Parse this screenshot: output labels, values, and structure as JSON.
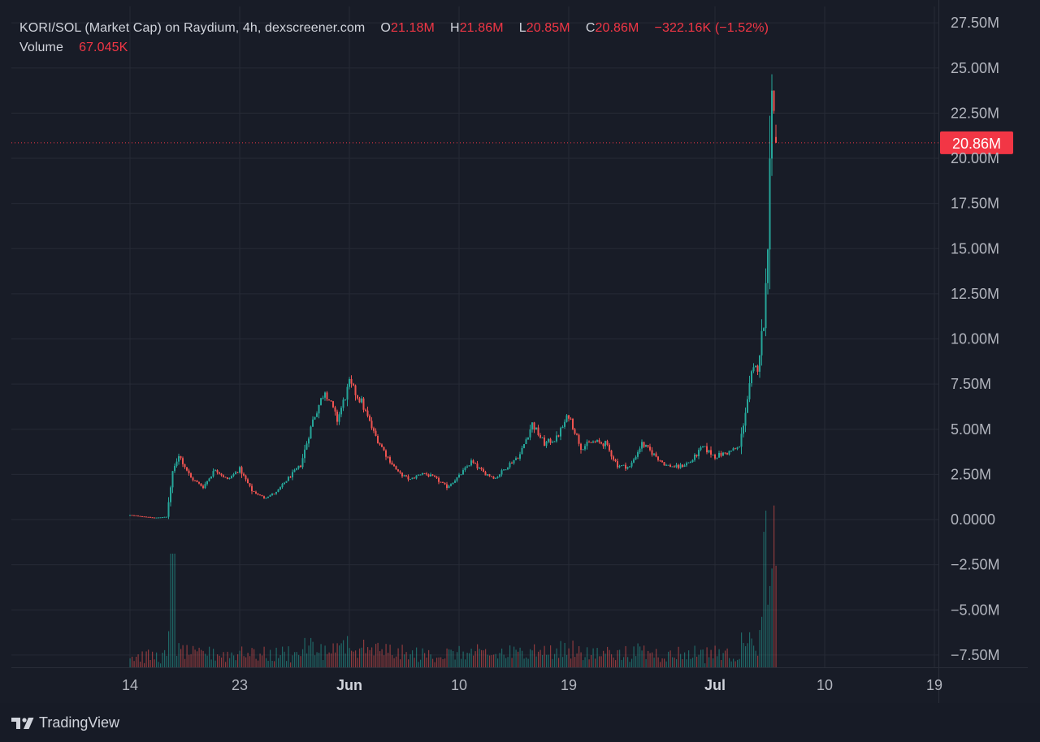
{
  "legend": {
    "title": "KORI/SOL (Market Cap) on Raydium, 4h, dexscreener.com",
    "o_label": "O",
    "o_value": "21.18M",
    "h_label": "H",
    "h_value": "21.86M",
    "l_label": "L",
    "l_value": "20.85M",
    "c_label": "C",
    "c_value": "20.86M",
    "change": "−322.16K (−1.52%)",
    "volume_label": "Volume",
    "volume_value": "67.045K"
  },
  "price_label": "20.86M",
  "branding": "TradingView",
  "colors": {
    "up": "#26a69a",
    "down": "#ef5350",
    "background": "#181c27",
    "grid": "#262a36",
    "price_line": "#f23645"
  },
  "chart_data": {
    "type": "candlestick",
    "interval": "4h",
    "x_tick_labels": [
      "14",
      "23",
      "Jun",
      "10",
      "19",
      "Jul",
      "10",
      "19"
    ],
    "x_tick_dates": [
      "2024-05-14",
      "2024-05-23",
      "2024-06-01",
      "2024-06-10",
      "2024-06-19",
      "2024-07-01",
      "2024-07-10",
      "2024-07-19"
    ],
    "y_tick_labels": [
      "27.50M",
      "25.00M",
      "22.50M",
      "20.00M",
      "17.50M",
      "15.00M",
      "12.50M",
      "10.00M",
      "7.50M",
      "5.00M",
      "2.50M",
      "0.0000",
      "−2.50M",
      "−5.00M",
      "−7.50M"
    ],
    "y_tick_values": [
      27.5,
      25,
      22.5,
      20,
      17.5,
      15,
      12.5,
      10,
      7.5,
      5,
      2.5,
      0,
      -2.5,
      -5,
      -7.5
    ],
    "y_unit": "M",
    "ylim": [
      -8,
      28
    ],
    "last_price": 20.86,
    "last_ohlc": {
      "open": 21.18,
      "high": 21.86,
      "low": 20.85,
      "close": 20.86
    },
    "price_anchors": [
      [
        "2024-05-14",
        0.25
      ],
      [
        "2024-05-16",
        0.1
      ],
      [
        "2024-05-17",
        0.15
      ],
      [
        "2024-05-17.5",
        2.6
      ],
      [
        "2024-05-18",
        3.6
      ],
      [
        "2024-05-19",
        2.3
      ],
      [
        "2024-05-20",
        1.8
      ],
      [
        "2024-05-21",
        2.8
      ],
      [
        "2024-05-22",
        2.2
      ],
      [
        "2024-05-23",
        2.8
      ],
      [
        "2024-05-24",
        1.6
      ],
      [
        "2024-05-25",
        1.2
      ],
      [
        "2024-05-26",
        1.5
      ],
      [
        "2024-05-27",
        2.3
      ],
      [
        "2024-05-28",
        3.0
      ],
      [
        "2024-05-29",
        5.5
      ],
      [
        "2024-05-30",
        7.2
      ],
      [
        "2024-05-31",
        5.5
      ],
      [
        "2024-06-01",
        7.5
      ],
      [
        "2024-06-02",
        6.5
      ],
      [
        "2024-06-03",
        4.8
      ],
      [
        "2024-06-04",
        3.6
      ],
      [
        "2024-06-05",
        2.6
      ],
      [
        "2024-06-06",
        2.2
      ],
      [
        "2024-06-07",
        2.6
      ],
      [
        "2024-06-08",
        2.3
      ],
      [
        "2024-06-09",
        1.8
      ],
      [
        "2024-06-10",
        2.4
      ],
      [
        "2024-06-11",
        3.2
      ],
      [
        "2024-06-12",
        2.6
      ],
      [
        "2024-06-13",
        2.3
      ],
      [
        "2024-06-14",
        3.0
      ],
      [
        "2024-06-15",
        3.6
      ],
      [
        "2024-06-16",
        5.3
      ],
      [
        "2024-06-17",
        4.2
      ],
      [
        "2024-06-18",
        4.5
      ],
      [
        "2024-06-19",
        5.8
      ],
      [
        "2024-06-20",
        4.0
      ],
      [
        "2024-06-21",
        4.3
      ],
      [
        "2024-06-22",
        4.2
      ],
      [
        "2024-06-23",
        3.0
      ],
      [
        "2024-06-24",
        2.9
      ],
      [
        "2024-06-25",
        4.2
      ],
      [
        "2024-06-26",
        3.6
      ],
      [
        "2024-06-27",
        3.0
      ],
      [
        "2024-06-28",
        2.9
      ],
      [
        "2024-06-29",
        3.2
      ],
      [
        "2024-06-30",
        4.0
      ],
      [
        "2024-07-01",
        3.5
      ],
      [
        "2024-07-02",
        3.7
      ],
      [
        "2024-07-03",
        4.0
      ],
      [
        "2024-07-04",
        8.0
      ],
      [
        "2024-07-04.5",
        8.5
      ],
      [
        "2024-07-05",
        11.0
      ],
      [
        "2024-07-05.3",
        14.5
      ],
      [
        "2024-07-05.5",
        20.5
      ],
      [
        "2024-07-05.7",
        24.0
      ],
      [
        "2024-07-06",
        21.18
      ]
    ],
    "volume_note": "Volume histogram overlaid at the bottom of the price pane"
  }
}
